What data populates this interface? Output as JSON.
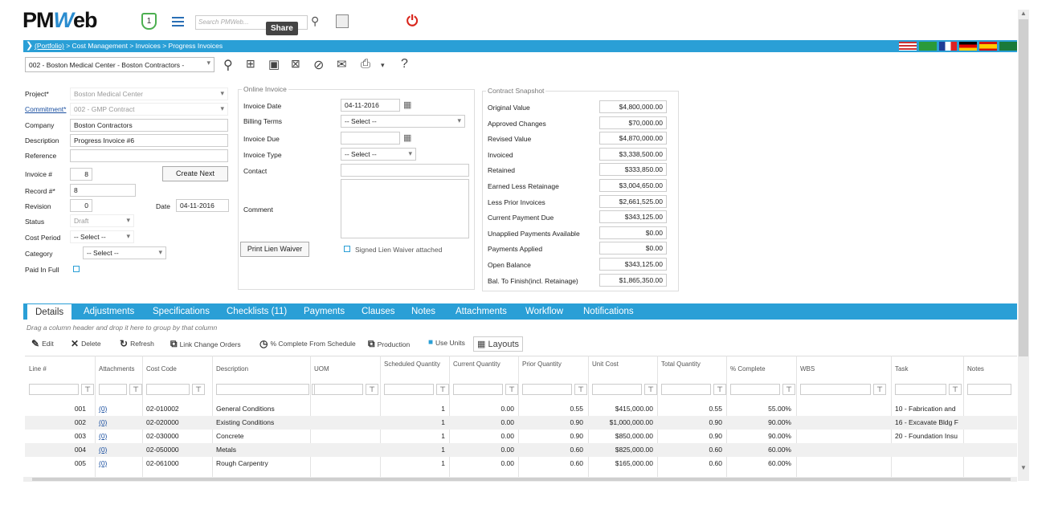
{
  "header": {
    "logo_a": "PM",
    "logo_b": "W",
    "logo_c": "eb",
    "badge": "1",
    "search_placeholder": "Search PMWeb...",
    "share_tip": "Share"
  },
  "breadcrumb": {
    "portfolio": "(Portfolio)",
    "rest": " > Cost Management > Invoices > Progress Invoices"
  },
  "record_selector": "002 - Boston Medical Center - Boston Contractors -",
  "form": {
    "project_label": "Project*",
    "project": "Boston Medical Center",
    "commitment_label": "Commitment*",
    "commitment": "002 - GMP Contract",
    "company_label": "Company",
    "company": "Boston Contractors",
    "description_label": "Description",
    "description": "Progress Invoice #6",
    "reference_label": "Reference",
    "reference": "",
    "invoice_no_label": "Invoice #",
    "invoice_no": "8",
    "create_next": "Create Next",
    "record_label": "Record #*",
    "record": "8",
    "revision_label": "Revision",
    "revision": "0",
    "date_label": "Date",
    "date": "04-11-2016",
    "status_label": "Status",
    "status": "Draft",
    "cost_period_label": "Cost Period",
    "cost_period": "-- Select --",
    "category_label": "Category",
    "category": "-- Select --",
    "paid_label": "Paid In Full"
  },
  "online": {
    "legend": "Online Invoice",
    "invoice_date_label": "Invoice Date",
    "invoice_date": "04-11-2016",
    "billing_label": "Billing Terms",
    "billing": "-- Select --",
    "due_label": "Invoice Due",
    "type_label": "Invoice Type",
    "type": "-- Select --",
    "contact_label": "Contact",
    "comment_label": "Comment",
    "print_lien": "Print Lien Waiver",
    "signed_lien": "Signed Lien Waiver attached"
  },
  "snapshot": {
    "legend": "Contract Snapshot",
    "rows": [
      {
        "label": "Original Value",
        "value": "$4,800,000.00"
      },
      {
        "label": "Approved Changes",
        "value": "$70,000.00"
      },
      {
        "label": "Revised Value",
        "value": "$4,870,000.00"
      },
      {
        "label": " Invoiced",
        "value": "$3,338,500.00"
      },
      {
        "label": "Retained",
        "value": "$333,850.00"
      },
      {
        "label": "Earned Less Retainage",
        "value": "$3,004,650.00"
      },
      {
        "label": "Less Prior Invoices",
        "value": "$2,661,525.00"
      },
      {
        "label": "Current Payment Due",
        "value": "$343,125.00"
      },
      {
        "label": "Unapplied Payments Available",
        "value": "$0.00"
      },
      {
        "label": "Payments Applied",
        "value": "$0.00"
      },
      {
        "label": "Open Balance",
        "value": "$343,125.00"
      },
      {
        "label": "Bal. To Finish(incl. Retainage)",
        "value": "$1,865,350.00"
      }
    ]
  },
  "tabs": [
    "Details",
    "Adjustments",
    "Specifications",
    "Checklists (11)",
    "Payments",
    "Clauses",
    "Notes",
    "Attachments",
    "Workflow",
    "Notifications"
  ],
  "grid": {
    "group_hint": "Drag a column header and drop it here to group by that column",
    "toolbar": [
      "Edit",
      "Delete",
      "Refresh",
      "Link Change Orders",
      "% Complete From Schedule",
      "Production",
      "Use Units",
      "Layouts"
    ],
    "columns": [
      "Line #",
      "Attachments",
      "Cost Code",
      "Description",
      "UOM",
      "Scheduled Quantity",
      "Current Quantity",
      "Prior Quantity",
      "Unit Cost",
      "Total Quantity",
      "% Complete",
      "WBS",
      "Task",
      "Notes"
    ],
    "rows": [
      [
        "001",
        "(0)",
        "02-010002",
        "General Conditions",
        "",
        "1",
        "0.00",
        "0.55",
        "$415,000.00",
        "0.55",
        "55.00%",
        "",
        "10 - Fabrication and"
      ],
      [
        "002",
        "(0)",
        "02-020000",
        "Existing Conditions",
        "",
        "1",
        "0.00",
        "0.90",
        "$1,000,000.00",
        "0.90",
        "90.00%",
        "",
        "16 - Excavate Bldg F"
      ],
      [
        "003",
        "(0)",
        "02-030000",
        "Concrete",
        "",
        "1",
        "0.00",
        "0.90",
        "$850,000.00",
        "0.90",
        "90.00%",
        "",
        "20 - Foundation Insu"
      ],
      [
        "004",
        "(0)",
        "02-050000",
        "Metals",
        "",
        "1",
        "0.00",
        "0.60",
        "$825,000.00",
        "0.60",
        "60.00%",
        "",
        ""
      ],
      [
        "005",
        "(0)",
        "02-061000",
        "Rough Carpentry",
        "",
        "1",
        "0.00",
        "0.60",
        "$165,000.00",
        "0.60",
        "60.00%",
        "",
        ""
      ]
    ]
  },
  "colors": {
    "accent": "#2a9fd6",
    "link": "#1a4fa0",
    "power": "#d9261c",
    "badge": "#4caf50"
  }
}
